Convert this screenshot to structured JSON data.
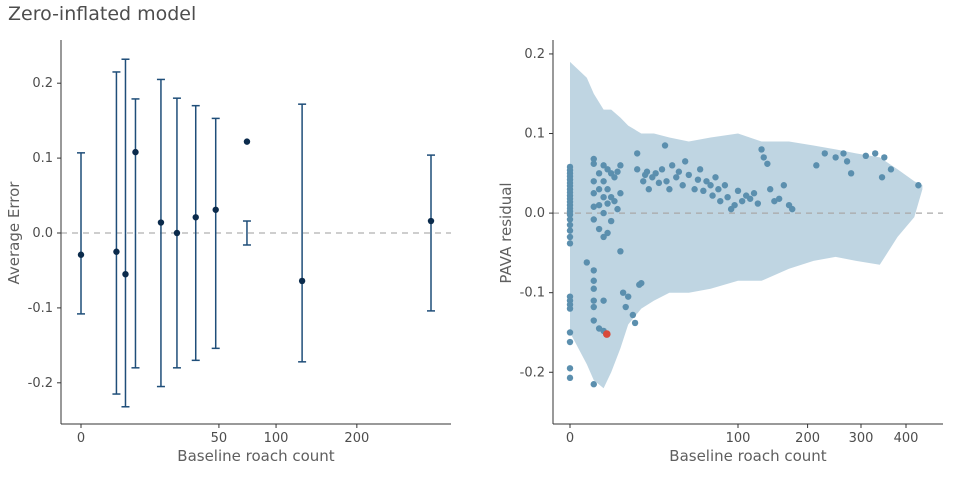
{
  "figure": {
    "title": "Zero-inflated model"
  },
  "chart_data": [
    {
      "type": "scatter",
      "subtype": "errorbar",
      "title": "",
      "xlabel": "Baseline roach count",
      "ylabel": "Average Error",
      "x_scale": "sqrt",
      "x_ticks": [
        0,
        50,
        100,
        200
      ],
      "y_ticks": [
        0.2,
        0.1,
        0.0,
        -0.1,
        -0.2
      ],
      "ylim": [
        -0.255,
        0.255
      ],
      "reference_line_y": 0,
      "colors": {
        "bar": "#1f4e79",
        "point": "#0b2b4c",
        "refline": "#b0b0b0"
      },
      "points": [
        {
          "x": 0,
          "y": -0.029,
          "lo": -0.108,
          "hi": 0.107
        },
        {
          "x": 3.3,
          "y": -0.025,
          "lo": -0.215,
          "hi": 0.215
        },
        {
          "x": 5.2,
          "y": -0.055,
          "lo": -0.232,
          "hi": 0.232
        },
        {
          "x": 7.8,
          "y": 0.108,
          "lo": -0.18,
          "hi": 0.179
        },
        {
          "x": 16.8,
          "y": 0.014,
          "lo": -0.205,
          "hi": 0.205
        },
        {
          "x": 24.2,
          "y": 0.0,
          "lo": -0.18,
          "hi": 0.18
        },
        {
          "x": 34.6,
          "y": 0.021,
          "lo": -0.17,
          "hi": 0.17
        },
        {
          "x": 47.7,
          "y": 0.031,
          "lo": -0.154,
          "hi": 0.153
        },
        {
          "x": 72.4,
          "y": 0.122,
          "lo": -0.016,
          "hi": 0.016
        },
        {
          "x": 128.5,
          "y": -0.064,
          "lo": -0.172,
          "hi": 0.172
        },
        {
          "x": 322,
          "y": 0.016,
          "lo": -0.104,
          "hi": 0.104
        }
      ]
    },
    {
      "type": "scatter",
      "title": "",
      "xlabel": "Baseline roach count",
      "ylabel": "PAVA residual",
      "x_scale": "sqrt",
      "x_ticks": [
        0,
        100,
        200,
        300,
        400
      ],
      "y_ticks": [
        0.2,
        0.1,
        0.0,
        -0.1,
        -0.2
      ],
      "ylim": [
        -0.265,
        0.215
      ],
      "reference_line_y": 0,
      "colors": {
        "point": "#5b8fae",
        "highlight": "#d94a3a",
        "band": "#bcd3e0",
        "refline": "#a8a8a8"
      },
      "band": [
        {
          "x": 0,
          "lo": -0.15,
          "hi": 0.19
        },
        {
          "x": 1,
          "lo": -0.19,
          "hi": 0.17
        },
        {
          "x": 2,
          "lo": -0.21,
          "hi": 0.15
        },
        {
          "x": 4,
          "lo": -0.22,
          "hi": 0.13
        },
        {
          "x": 6,
          "lo": -0.2,
          "hi": 0.13
        },
        {
          "x": 9,
          "lo": -0.17,
          "hi": 0.12
        },
        {
          "x": 12,
          "lo": -0.14,
          "hi": 0.11
        },
        {
          "x": 18,
          "lo": -0.12,
          "hi": 0.1
        },
        {
          "x": 25,
          "lo": -0.11,
          "hi": 0.1
        },
        {
          "x": 35,
          "lo": -0.1,
          "hi": 0.095
        },
        {
          "x": 50,
          "lo": -0.1,
          "hi": 0.09
        },
        {
          "x": 70,
          "lo": -0.095,
          "hi": 0.095
        },
        {
          "x": 100,
          "lo": -0.085,
          "hi": 0.1
        },
        {
          "x": 130,
          "lo": -0.085,
          "hi": 0.09
        },
        {
          "x": 170,
          "lo": -0.07,
          "hi": 0.09
        },
        {
          "x": 210,
          "lo": -0.06,
          "hi": 0.085
        },
        {
          "x": 250,
          "lo": -0.055,
          "hi": 0.08
        },
        {
          "x": 290,
          "lo": -0.06,
          "hi": 0.075
        },
        {
          "x": 340,
          "lo": -0.065,
          "hi": 0.07
        },
        {
          "x": 380,
          "lo": -0.03,
          "hi": 0.055
        },
        {
          "x": 420,
          "lo": -0.005,
          "hi": 0.04
        },
        {
          "x": 440,
          "lo": 0.03,
          "hi": 0.035
        }
      ],
      "points": [
        {
          "x": 0,
          "y": 0.058
        },
        {
          "x": 0,
          "y": 0.054
        },
        {
          "x": 0,
          "y": 0.05
        },
        {
          "x": 0,
          "y": 0.046
        },
        {
          "x": 0,
          "y": 0.042
        },
        {
          "x": 0,
          "y": 0.038
        },
        {
          "x": 0,
          "y": 0.034
        },
        {
          "x": 0,
          "y": 0.03
        },
        {
          "x": 0,
          "y": 0.026
        },
        {
          "x": 0,
          "y": 0.022
        },
        {
          "x": 0,
          "y": 0.018
        },
        {
          "x": 0,
          "y": 0.014
        },
        {
          "x": 0,
          "y": 0.01
        },
        {
          "x": 0,
          "y": 0.006
        },
        {
          "x": 0,
          "y": 0.002
        },
        {
          "x": 0,
          "y": -0.002
        },
        {
          "x": 0,
          "y": -0.008
        },
        {
          "x": 0,
          "y": -0.015
        },
        {
          "x": 0,
          "y": -0.022
        },
        {
          "x": 0,
          "y": -0.03
        },
        {
          "x": 0,
          "y": -0.038
        },
        {
          "x": 0,
          "y": -0.105
        },
        {
          "x": 0,
          "y": -0.11
        },
        {
          "x": 0,
          "y": -0.115
        },
        {
          "x": 0,
          "y": -0.12
        },
        {
          "x": 0,
          "y": -0.15
        },
        {
          "x": 0,
          "y": -0.162
        },
        {
          "x": 0,
          "y": -0.195
        },
        {
          "x": 0,
          "y": -0.207
        },
        {
          "x": 1,
          "y": -0.062
        },
        {
          "x": 2,
          "y": 0.068
        },
        {
          "x": 2,
          "y": 0.062
        },
        {
          "x": 2,
          "y": 0.04
        },
        {
          "x": 2,
          "y": 0.025
        },
        {
          "x": 2,
          "y": 0.008
        },
        {
          "x": 2,
          "y": -0.008
        },
        {
          "x": 2,
          "y": -0.072
        },
        {
          "x": 2,
          "y": -0.085
        },
        {
          "x": 2,
          "y": -0.095
        },
        {
          "x": 2,
          "y": -0.11
        },
        {
          "x": 2,
          "y": -0.118
        },
        {
          "x": 2,
          "y": -0.135
        },
        {
          "x": 2,
          "y": -0.215
        },
        {
          "x": 3,
          "y": 0.05
        },
        {
          "x": 3,
          "y": 0.03
        },
        {
          "x": 3,
          "y": 0.01
        },
        {
          "x": 3,
          "y": -0.02
        },
        {
          "x": 3,
          "y": -0.145
        },
        {
          "x": 4,
          "y": 0.06
        },
        {
          "x": 4,
          "y": 0.04
        },
        {
          "x": 4,
          "y": 0.02
        },
        {
          "x": 4,
          "y": 0.0
        },
        {
          "x": 4,
          "y": -0.03
        },
        {
          "x": 4,
          "y": -0.11
        },
        {
          "x": 4,
          "y": -0.148
        },
        {
          "x": 5,
          "y": 0.055
        },
        {
          "x": 5,
          "y": 0.03
        },
        {
          "x": 5,
          "y": 0.012
        },
        {
          "x": 5,
          "y": -0.025
        },
        {
          "x": 6,
          "y": 0.05
        },
        {
          "x": 6,
          "y": 0.02
        },
        {
          "x": 6,
          "y": -0.01
        },
        {
          "x": 7,
          "y": 0.045
        },
        {
          "x": 7,
          "y": 0.015
        },
        {
          "x": 8,
          "y": 0.052
        },
        {
          "x": 8,
          "y": 0.005
        },
        {
          "x": 9,
          "y": 0.06
        },
        {
          "x": 9,
          "y": 0.025
        },
        {
          "x": 9,
          "y": -0.048
        },
        {
          "x": 10,
          "y": -0.1
        },
        {
          "x": 11,
          "y": -0.118
        },
        {
          "x": 12,
          "y": -0.105
        },
        {
          "x": 14,
          "y": -0.128
        },
        {
          "x": 15,
          "y": -0.138
        },
        {
          "x": 16,
          "y": 0.075
        },
        {
          "x": 16,
          "y": 0.055
        },
        {
          "x": 17,
          "y": -0.09
        },
        {
          "x": 18,
          "y": -0.088
        },
        {
          "x": 19,
          "y": 0.04
        },
        {
          "x": 20,
          "y": 0.048
        },
        {
          "x": 21,
          "y": 0.052
        },
        {
          "x": 22,
          "y": 0.03
        },
        {
          "x": 24,
          "y": 0.045
        },
        {
          "x": 26,
          "y": 0.05
        },
        {
          "x": 28,
          "y": 0.038
        },
        {
          "x": 30,
          "y": 0.055
        },
        {
          "x": 32,
          "y": 0.085
        },
        {
          "x": 33,
          "y": 0.04
        },
        {
          "x": 35,
          "y": 0.03
        },
        {
          "x": 37,
          "y": 0.06
        },
        {
          "x": 40,
          "y": 0.045
        },
        {
          "x": 42,
          "y": 0.052
        },
        {
          "x": 45,
          "y": 0.035
        },
        {
          "x": 47,
          "y": 0.065
        },
        {
          "x": 50,
          "y": 0.048
        },
        {
          "x": 55,
          "y": 0.03
        },
        {
          "x": 58,
          "y": 0.042
        },
        {
          "x": 60,
          "y": 0.055
        },
        {
          "x": 63,
          "y": 0.028
        },
        {
          "x": 66,
          "y": 0.04
        },
        {
          "x": 70,
          "y": 0.035
        },
        {
          "x": 72,
          "y": 0.022
        },
        {
          "x": 75,
          "y": 0.045
        },
        {
          "x": 78,
          "y": 0.03
        },
        {
          "x": 80,
          "y": 0.015
        },
        {
          "x": 85,
          "y": 0.035
        },
        {
          "x": 88,
          "y": 0.02
        },
        {
          "x": 92,
          "y": 0.005
        },
        {
          "x": 96,
          "y": 0.01
        },
        {
          "x": 100,
          "y": 0.028
        },
        {
          "x": 105,
          "y": 0.015
        },
        {
          "x": 110,
          "y": 0.022
        },
        {
          "x": 115,
          "y": 0.018
        },
        {
          "x": 120,
          "y": 0.025
        },
        {
          "x": 125,
          "y": 0.012
        },
        {
          "x": 130,
          "y": 0.08
        },
        {
          "x": 133,
          "y": 0.07
        },
        {
          "x": 138,
          "y": 0.062
        },
        {
          "x": 142,
          "y": 0.03
        },
        {
          "x": 148,
          "y": 0.015
        },
        {
          "x": 155,
          "y": 0.018
        },
        {
          "x": 162,
          "y": 0.035
        },
        {
          "x": 170,
          "y": 0.01
        },
        {
          "x": 175,
          "y": 0.005
        },
        {
          "x": 215,
          "y": 0.06
        },
        {
          "x": 230,
          "y": 0.075
        },
        {
          "x": 250,
          "y": 0.07
        },
        {
          "x": 265,
          "y": 0.075
        },
        {
          "x": 272,
          "y": 0.065
        },
        {
          "x": 280,
          "y": 0.05
        },
        {
          "x": 310,
          "y": 0.072
        },
        {
          "x": 330,
          "y": 0.075
        },
        {
          "x": 345,
          "y": 0.045
        },
        {
          "x": 350,
          "y": 0.07
        },
        {
          "x": 365,
          "y": 0.055
        },
        {
          "x": 430,
          "y": 0.035
        }
      ],
      "highlight": {
        "x": 4.8,
        "y": -0.152
      }
    }
  ]
}
